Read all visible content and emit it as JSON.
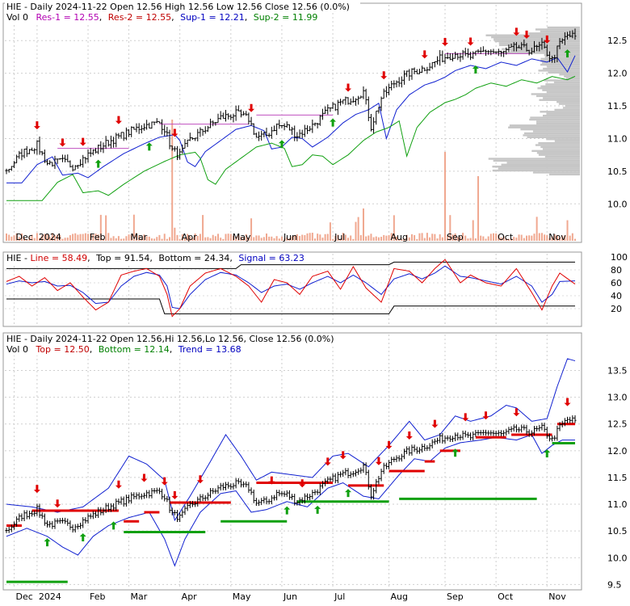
{
  "chart_data": [
    {
      "type": "candlestick",
      "panel": "price",
      "header": {
        "line1": "HIE - Daily 2024-11-22 Open 12.56  High 12.56  Low 12.56  Close 12.56 (0.0%)",
        "vol": "Vol 0",
        "res1": "Res-1 = 12.55",
        "res2": "Res-2 = 12.55",
        "sup1": "Sup-1 = 12.21",
        "sup2": "Sup-2 = 11.99"
      },
      "x_labels": [
        "Dec",
        "2024",
        "Feb",
        "Mar",
        "Apr",
        "May",
        "Jun",
        "Jul",
        "Aug",
        "Sep",
        "Oct",
        "Nov"
      ],
      "y_ticks": [
        "12.5",
        "12.0",
        "11.5",
        "11.0",
        "10.5",
        "10.0"
      ],
      "ylim": [
        9.88,
        12.75
      ],
      "anchors": [
        [
          0,
          10.5
        ],
        [
          6,
          10.78
        ],
        [
          12,
          10.9
        ],
        [
          16,
          10.62
        ],
        [
          22,
          10.65
        ],
        [
          26,
          10.58
        ],
        [
          32,
          10.75
        ],
        [
          40,
          10.95
        ],
        [
          48,
          11.1
        ],
        [
          54,
          11.2
        ],
        [
          60,
          11.24
        ],
        [
          62,
          11.15
        ],
        [
          65,
          10.82
        ],
        [
          68,
          10.75
        ],
        [
          72,
          10.98
        ],
        [
          78,
          11.15
        ],
        [
          84,
          11.32
        ],
        [
          90,
          11.38
        ],
        [
          95,
          11.3
        ],
        [
          98,
          11.02
        ],
        [
          102,
          11.05
        ],
        [
          106,
          11.2
        ],
        [
          110,
          11.18
        ],
        [
          114,
          11.05
        ],
        [
          120,
          11.2
        ],
        [
          126,
          11.42
        ],
        [
          131,
          11.55
        ],
        [
          136,
          11.62
        ],
        [
          140,
          11.72
        ],
        [
          143,
          11.18
        ],
        [
          147,
          11.62
        ],
        [
          152,
          11.85
        ],
        [
          158,
          12.0
        ],
        [
          162,
          12.05
        ],
        [
          166,
          12.12
        ],
        [
          170,
          12.22
        ],
        [
          176,
          12.3
        ],
        [
          182,
          12.25
        ],
        [
          188,
          12.35
        ],
        [
          194,
          12.3
        ],
        [
          200,
          12.4
        ],
        [
          206,
          12.35
        ],
        [
          210,
          12.42
        ],
        [
          214,
          12.2
        ],
        [
          217,
          12.45
        ],
        [
          220,
          12.58
        ],
        [
          223,
          12.56
        ]
      ],
      "n_bars": 224,
      "arrows_down": [
        12,
        22,
        30,
        44,
        66,
        96,
        134,
        148,
        164,
        172,
        182,
        200,
        204,
        212
      ],
      "arrows_up": [
        36,
        56,
        108,
        128,
        184,
        220
      ]
    },
    {
      "type": "line",
      "panel": "oscillator",
      "header": {
        "title": "HIE - ",
        "line": "Line = 58.49",
        "top": "Top = 91.54",
        "bottom": "Bottom = 24.34",
        "signal": "Signal = 63.23"
      },
      "y_ticks": [
        "100",
        "80",
        "60",
        "40",
        "20"
      ],
      "ylim": [
        0,
        100
      ],
      "series": [
        {
          "values": [
            [
              0,
              62
            ],
            [
              5,
              70
            ],
            [
              10,
              55
            ],
            [
              15,
              68
            ],
            [
              20,
              48
            ],
            [
              25,
              60
            ],
            [
              30,
              38
            ],
            [
              35,
              18
            ],
            [
              40,
              30
            ],
            [
              45,
              72
            ],
            [
              50,
              78
            ],
            [
              55,
              82
            ],
            [
              60,
              70
            ],
            [
              63,
              42
            ],
            [
              65,
              8
            ],
            [
              68,
              20
            ],
            [
              72,
              55
            ],
            [
              78,
              75
            ],
            [
              84,
              82
            ],
            [
              90,
              70
            ],
            [
              95,
              55
            ],
            [
              100,
              30
            ],
            [
              105,
              65
            ],
            [
              110,
              60
            ],
            [
              115,
              42
            ],
            [
              120,
              70
            ],
            [
              126,
              78
            ],
            [
              131,
              50
            ],
            [
              136,
              85
            ],
            [
              141,
              52
            ],
            [
              147,
              30
            ],
            [
              152,
              82
            ],
            [
              158,
              78
            ],
            [
              163,
              60
            ],
            [
              168,
              82
            ],
            [
              172,
              96
            ],
            [
              178,
              60
            ],
            [
              182,
              72
            ],
            [
              188,
              60
            ],
            [
              194,
              55
            ],
            [
              200,
              82
            ],
            [
              206,
              45
            ],
            [
              210,
              18
            ],
            [
              214,
              55
            ],
            [
              217,
              75
            ],
            [
              223,
              58
            ]
          ]
        },
        {
          "values": [
            [
              0,
              58
            ],
            [
              5,
              63
            ],
            [
              10,
              60
            ],
            [
              15,
              62
            ],
            [
              20,
              55
            ],
            [
              25,
              56
            ],
            [
              30,
              45
            ],
            [
              35,
              28
            ],
            [
              40,
              30
            ],
            [
              45,
              55
            ],
            [
              50,
              70
            ],
            [
              55,
              76
            ],
            [
              60,
              72
            ],
            [
              63,
              55
            ],
            [
              65,
              22
            ],
            [
              68,
              20
            ],
            [
              72,
              42
            ],
            [
              78,
              65
            ],
            [
              84,
              76
            ],
            [
              90,
              72
            ],
            [
              95,
              60
            ],
            [
              100,
              45
            ],
            [
              105,
              55
            ],
            [
              110,
              58
            ],
            [
              115,
              50
            ],
            [
              120,
              60
            ],
            [
              126,
              70
            ],
            [
              131,
              60
            ],
            [
              136,
              72
            ],
            [
              141,
              60
            ],
            [
              147,
              42
            ],
            [
              152,
              66
            ],
            [
              158,
              74
            ],
            [
              163,
              66
            ],
            [
              168,
              75
            ],
            [
              172,
              86
            ],
            [
              178,
              70
            ],
            [
              182,
              68
            ],
            [
              188,
              63
            ],
            [
              194,
              58
            ],
            [
              200,
              70
            ],
            [
              206,
              55
            ],
            [
              210,
              30
            ],
            [
              214,
              42
            ],
            [
              217,
              62
            ],
            [
              223,
              63
            ]
          ]
        }
      ],
      "band_top": [
        [
          0,
          82
        ],
        [
          90,
          82
        ],
        [
          92,
          88
        ],
        [
          150,
          88
        ],
        [
          152,
          92
        ],
        [
          223,
          92
        ]
      ],
      "band_bottom": [
        [
          0,
          35
        ],
        [
          60,
          35
        ],
        [
          62,
          12
        ],
        [
          150,
          12
        ],
        [
          152,
          24
        ],
        [
          223,
          24
        ]
      ]
    },
    {
      "type": "candlestick",
      "panel": "bollinger",
      "header": {
        "line1": "HIE - Daily 2024-11-22 Open 12.56,Hi 12.56,Lo 12.56, Close 12.56 (0.0%)",
        "vol": "Vol 0",
        "top": "Top = 12.50",
        "bottom": "Bottom = 12.14",
        "trend": "Trend = 13.68"
      },
      "y_ticks": [
        "13.5",
        "13.0",
        "12.5",
        "12.0",
        "11.5",
        "11.0",
        "10.5",
        "10.0",
        "9.5"
      ],
      "ylim": [
        9.4,
        13.9
      ],
      "env_upper": [
        [
          0,
          11.0
        ],
        [
          10,
          10.95
        ],
        [
          20,
          10.85
        ],
        [
          30,
          10.95
        ],
        [
          40,
          11.3
        ],
        [
          48,
          11.9
        ],
        [
          55,
          11.75
        ],
        [
          62,
          11.45
        ],
        [
          66,
          10.7
        ],
        [
          72,
          11.15
        ],
        [
          80,
          11.8
        ],
        [
          86,
          12.3
        ],
        [
          92,
          11.9
        ],
        [
          98,
          11.45
        ],
        [
          104,
          11.6
        ],
        [
          112,
          11.55
        ],
        [
          120,
          11.5
        ],
        [
          128,
          11.9
        ],
        [
          134,
          11.95
        ],
        [
          142,
          11.7
        ],
        [
          150,
          12.1
        ],
        [
          158,
          12.55
        ],
        [
          164,
          12.2
        ],
        [
          170,
          12.3
        ],
        [
          176,
          12.65
        ],
        [
          182,
          12.55
        ],
        [
          190,
          12.65
        ],
        [
          196,
          12.85
        ],
        [
          200,
          12.8
        ],
        [
          206,
          12.55
        ],
        [
          212,
          12.6
        ],
        [
          216,
          13.2
        ],
        [
          220,
          13.72
        ],
        [
          223,
          13.68
        ]
      ],
      "env_lower": [
        [
          0,
          10.4
        ],
        [
          8,
          10.55
        ],
        [
          16,
          10.4
        ],
        [
          22,
          10.2
        ],
        [
          28,
          10.05
        ],
        [
          34,
          10.4
        ],
        [
          40,
          10.6
        ],
        [
          48,
          10.75
        ],
        [
          56,
          10.85
        ],
        [
          62,
          10.35
        ],
        [
          66,
          9.85
        ],
        [
          70,
          10.35
        ],
        [
          76,
          10.85
        ],
        [
          84,
          11.2
        ],
        [
          90,
          11.25
        ],
        [
          96,
          10.85
        ],
        [
          102,
          10.9
        ],
        [
          110,
          11.05
        ],
        [
          118,
          10.95
        ],
        [
          126,
          11.3
        ],
        [
          132,
          11.4
        ],
        [
          140,
          11.15
        ],
        [
          146,
          11.1
        ],
        [
          154,
          11.55
        ],
        [
          160,
          11.85
        ],
        [
          166,
          11.8
        ],
        [
          172,
          12.05
        ],
        [
          178,
          12.15
        ],
        [
          186,
          12.2
        ],
        [
          192,
          12.25
        ],
        [
          200,
          12.2
        ],
        [
          206,
          12.3
        ],
        [
          210,
          11.95
        ],
        [
          214,
          12.1
        ],
        [
          218,
          12.2
        ],
        [
          223,
          12.2
        ]
      ],
      "levels_red": [
        [
          0,
          6,
          10.6
        ],
        [
          10,
          44,
          10.88
        ],
        [
          46,
          52,
          10.68
        ],
        [
          54,
          60,
          10.85
        ],
        [
          64,
          88,
          11.03
        ],
        [
          98,
          128,
          11.4
        ],
        [
          134,
          148,
          11.35
        ],
        [
          150,
          164,
          11.62
        ],
        [
          164,
          168,
          11.8
        ],
        [
          170,
          178,
          12.0
        ],
        [
          184,
          196,
          12.25
        ],
        [
          198,
          214,
          12.3
        ],
        [
          216,
          223,
          12.5
        ]
      ],
      "levels_green": [
        [
          0,
          24,
          9.55
        ],
        [
          46,
          78,
          10.48
        ],
        [
          84,
          110,
          10.68
        ],
        [
          114,
          150,
          11.05
        ],
        [
          154,
          208,
          11.1
        ],
        [
          214,
          223,
          12.14
        ]
      ],
      "arrows_down": [
        12,
        20,
        44,
        54,
        62,
        66,
        76,
        104,
        116,
        126,
        132,
        146,
        150,
        158,
        168,
        180,
        188,
        200,
        220
      ],
      "arrows_up": [
        16,
        30,
        42,
        110,
        122,
        134,
        176,
        212
      ]
    }
  ]
}
